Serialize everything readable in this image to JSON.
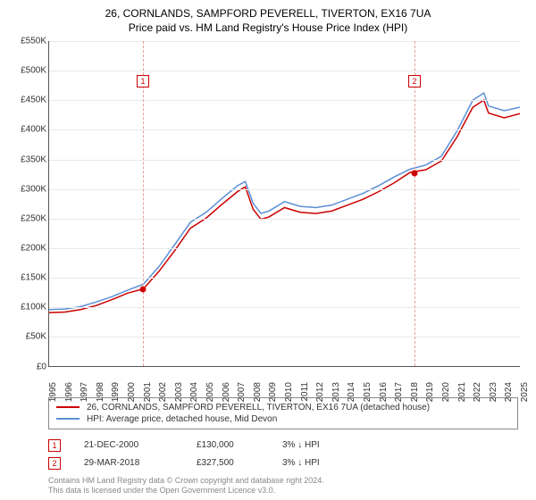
{
  "title": "26, CORNLANDS, SAMPFORD PEVERELL, TIVERTON, EX16 7UA",
  "subtitle": "Price paid vs. HM Land Registry's House Price Index (HPI)",
  "chart": {
    "type": "line",
    "background_color": "#ffffff",
    "grid_color": "#e9e9e9",
    "axis_color": "#555555",
    "ylim": [
      0,
      550000
    ],
    "ytick_step": 50000,
    "ytick_labels": [
      "£0",
      "£50K",
      "£100K",
      "£150K",
      "£200K",
      "£250K",
      "£300K",
      "£350K",
      "£400K",
      "£450K",
      "£500K",
      "£550K"
    ],
    "xlim": [
      1995,
      2025
    ],
    "xticks": [
      1995,
      1996,
      1997,
      1998,
      1999,
      2000,
      2001,
      2002,
      2003,
      2004,
      2005,
      2006,
      2007,
      2008,
      2009,
      2010,
      2011,
      2012,
      2013,
      2014,
      2015,
      2016,
      2017,
      2018,
      2019,
      2020,
      2021,
      2022,
      2023,
      2024,
      2025
    ],
    "label_fontsize": 10,
    "title_fontsize": 12,
    "series": [
      {
        "name": "hpi",
        "label": "HPI: Average price, detached house, Mid Devon",
        "color": "#5b8fd6",
        "width": 1.5,
        "x": [
          1995,
          1996,
          1997,
          1998,
          1999,
          2000,
          2001,
          2002,
          2003,
          2004,
          2005,
          2006,
          2007,
          2007.5,
          2008,
          2008.5,
          2009,
          2010,
          2011,
          2012,
          2013,
          2014,
          2015,
          2016,
          2017,
          2018,
          2019,
          2020,
          2021,
          2022,
          2022.7,
          2023,
          2024,
          2025
        ],
        "y": [
          95000,
          96000,
          100000,
          108000,
          117000,
          128000,
          138000,
          168000,
          205000,
          243000,
          260000,
          283000,
          305000,
          312000,
          275000,
          258000,
          262000,
          278000,
          270000,
          268000,
          272000,
          282000,
          292000,
          305000,
          320000,
          333000,
          340000,
          355000,
          398000,
          450000,
          462000,
          440000,
          432000,
          438000
        ]
      },
      {
        "name": "property",
        "label": "26, CORNLANDS, SAMPFORD PEVERELL, TIVERTON, EX16 7UA (detached house)",
        "color": "#cc0000",
        "width": 1.5,
        "x": [
          1995,
          1996,
          1997,
          1998,
          1999,
          2000,
          2001,
          2002,
          2003,
          2004,
          2005,
          2006,
          2007,
          2007.5,
          2008,
          2008.5,
          2009,
          2010,
          2011,
          2012,
          2013,
          2014,
          2015,
          2016,
          2017,
          2018,
          2019,
          2020,
          2021,
          2022,
          2022.7,
          2023,
          2024,
          2025
        ],
        "y": [
          90000,
          91000,
          95000,
          102000,
          112000,
          123000,
          130000,
          160000,
          195000,
          233000,
          250000,
          273000,
          295000,
          303000,
          265000,
          248000,
          252000,
          268000,
          260000,
          258000,
          262000,
          272000,
          282000,
          295000,
          310000,
          327500,
          332000,
          347000,
          388000,
          438000,
          450000,
          428000,
          420000,
          427000
        ]
      }
    ],
    "markers": [
      {
        "id": "1",
        "x": 2000.97,
        "y": 130000,
        "vline_color": "#e6a0a0"
      },
      {
        "id": "2",
        "x": 2018.24,
        "y": 327500,
        "vline_color": "#e6a0a0"
      }
    ],
    "marker_box_y_top": 38
  },
  "legend": {
    "items": [
      {
        "color": "#cc0000",
        "label": "26, CORNLANDS, SAMPFORD PEVERELL, TIVERTON, EX16 7UA (detached house)"
      },
      {
        "color": "#5b8fd6",
        "label": "HPI: Average price, detached house, Mid Devon"
      }
    ]
  },
  "sales": [
    {
      "id": "1",
      "date": "21-DEC-2000",
      "price": "£130,000",
      "delta": "3% ↓ HPI"
    },
    {
      "id": "2",
      "date": "29-MAR-2018",
      "price": "£327,500",
      "delta": "3% ↓ HPI"
    }
  ],
  "footer": {
    "line1": "Contains HM Land Registry data © Crown copyright and database right 2024.",
    "line2": "This data is licensed under the Open Government Licence v3.0."
  }
}
